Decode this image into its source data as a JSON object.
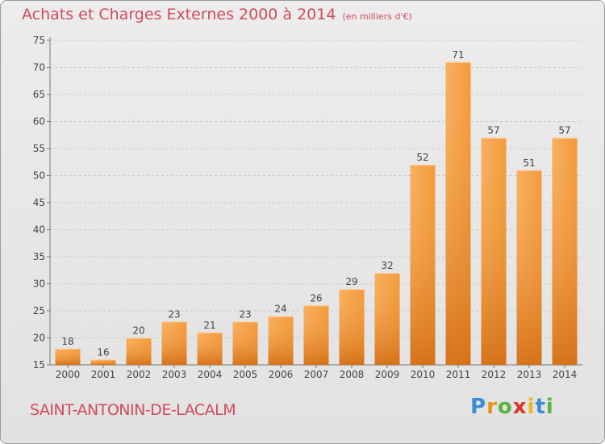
{
  "title": "Achats et Charges Externes 2000 à 2014",
  "unit": "(en milliers d'€)",
  "commune": "SAINT-ANTONIN-DE-LACALM",
  "logo": {
    "letters": [
      "P",
      "r",
      "o",
      "x",
      "i",
      "t",
      "i"
    ],
    "colors": [
      "#3a8ed6",
      "#e8921c",
      "#5bb33a",
      "#d8362a",
      "#e8b81c",
      "#3a8ed6",
      "#5bb33a"
    ]
  },
  "colors": {
    "title": "#d14b5c",
    "bar_light": "#f6a650",
    "bar_dark": "#d77416"
  },
  "chart_data": {
    "type": "bar",
    "categories": [
      "2000",
      "2001",
      "2002",
      "2003",
      "2004",
      "2005",
      "2006",
      "2007",
      "2008",
      "2009",
      "2010",
      "2011",
      "2012",
      "2013",
      "2014"
    ],
    "values": [
      18,
      16,
      20,
      23,
      21,
      23,
      24,
      26,
      29,
      32,
      52,
      71,
      57,
      51,
      57
    ],
    "ylim": [
      15,
      75
    ],
    "yticks": [
      15,
      20,
      25,
      30,
      35,
      40,
      45,
      50,
      55,
      60,
      65,
      70,
      75
    ],
    "grid": true
  }
}
